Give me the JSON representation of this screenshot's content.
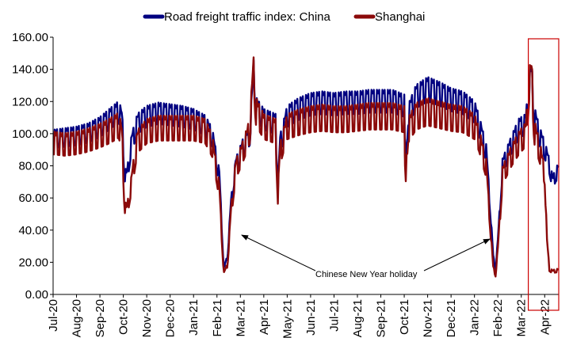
{
  "chart_data": {
    "type": "line",
    "title": "",
    "xlabel": "",
    "ylabel": "",
    "ylim": [
      0,
      160
    ],
    "yticks": [
      "0.00",
      "20.00",
      "40.00",
      "60.00",
      "80.00",
      "100.00",
      "120.00",
      "140.00",
      "160.00"
    ],
    "xticks": [
      "Jul-20",
      "Aug-20",
      "Sep-20",
      "Oct-20",
      "Nov-20",
      "Dec-20",
      "Jan-21",
      "Feb-21",
      "Mar-21",
      "Apr-21",
      "May-21",
      "Jun-21",
      "Jul-21",
      "Aug-21",
      "Sep-21",
      "Oct-21",
      "Nov-21",
      "Dec-21",
      "Jan-22",
      "Feb-22",
      "Mar-22",
      "Apr-22"
    ],
    "x_range_months": [
      0,
      21.6
    ],
    "legend_position": "top",
    "annotation": "Chinese New Year holiday",
    "highlight_box": {
      "x_from_months": 20.3,
      "x_to_months": 21.6,
      "color": "#cc0000"
    },
    "series": [
      {
        "name": "Road freight traffic index: China",
        "color": "#000080",
        "weekly_swing": 8,
        "points": [
          [
            0,
            103
          ],
          [
            0.5,
            104
          ],
          [
            1,
            105
          ],
          [
            1.5,
            107
          ],
          [
            2,
            111
          ],
          [
            2.4,
            116
          ],
          [
            2.8,
            121
          ],
          [
            2.95,
            115
          ],
          [
            3.05,
            80
          ],
          [
            3.15,
            77
          ],
          [
            3.35,
            100
          ],
          [
            3.6,
            113
          ],
          [
            4,
            118
          ],
          [
            4.5,
            120
          ],
          [
            5,
            119
          ],
          [
            5.5,
            118
          ],
          [
            6,
            116
          ],
          [
            6.5,
            112
          ],
          [
            6.8,
            104
          ],
          [
            7.1,
            78
          ],
          [
            7.25,
            30
          ],
          [
            7.3,
            17
          ],
          [
            7.45,
            25
          ],
          [
            7.6,
            60
          ],
          [
            7.8,
            85
          ],
          [
            8.1,
            97
          ],
          [
            8.4,
            105
          ],
          [
            8.52,
            135
          ],
          [
            8.58,
            150
          ],
          [
            8.65,
            124
          ],
          [
            9,
            116
          ],
          [
            9.5,
            113
          ],
          [
            9.6,
            70
          ],
          [
            9.7,
            100
          ],
          [
            10,
            118
          ],
          [
            10.5,
            123
          ],
          [
            11,
            126
          ],
          [
            11.5,
            127
          ],
          [
            12,
            126
          ],
          [
            12.5,
            127
          ],
          [
            13,
            127
          ],
          [
            13.5,
            128
          ],
          [
            14,
            128
          ],
          [
            14.5,
            128
          ],
          [
            15,
            125
          ],
          [
            15.05,
            70
          ],
          [
            15.15,
            118
          ],
          [
            15.5,
            131
          ],
          [
            16,
            136
          ],
          [
            16.5,
            133
          ],
          [
            17,
            129
          ],
          [
            17.5,
            127
          ],
          [
            18,
            121
          ],
          [
            18.2,
            112
          ],
          [
            18.5,
            94
          ],
          [
            18.7,
            50
          ],
          [
            18.8,
            25
          ],
          [
            18.9,
            16
          ],
          [
            19.0,
            35
          ],
          [
            19.2,
            85
          ],
          [
            19.6,
            100
          ],
          [
            19.9,
            110
          ],
          [
            20.2,
            113
          ],
          [
            20.35,
            140
          ],
          [
            20.45,
            144
          ],
          [
            20.55,
            118
          ],
          [
            20.8,
            104
          ],
          [
            21.0,
            96
          ],
          [
            21.2,
            85
          ],
          [
            21.35,
            73
          ],
          [
            21.45,
            79
          ],
          [
            21.6,
            82
          ]
        ]
      },
      {
        "name": "Shanghai",
        "color": "#8b0a0a",
        "weekly_swing": 10,
        "points": [
          [
            0,
            102
          ],
          [
            0.5,
            101
          ],
          [
            1,
            102
          ],
          [
            1.5,
            104
          ],
          [
            2,
            107
          ],
          [
            2.4,
            110
          ],
          [
            2.8,
            114
          ],
          [
            2.95,
            105
          ],
          [
            3.05,
            60
          ],
          [
            3.15,
            55
          ],
          [
            3.35,
            75
          ],
          [
            3.6,
            103
          ],
          [
            4,
            110
          ],
          [
            4.5,
            112
          ],
          [
            5,
            112
          ],
          [
            5.5,
            112
          ],
          [
            6,
            112
          ],
          [
            6.5,
            110
          ],
          [
            6.8,
            100
          ],
          [
            7.1,
            70
          ],
          [
            7.25,
            25
          ],
          [
            7.3,
            14
          ],
          [
            7.45,
            20
          ],
          [
            7.6,
            55
          ],
          [
            7.8,
            84
          ],
          [
            8.1,
            96
          ],
          [
            8.4,
            110
          ],
          [
            8.52,
            140
          ],
          [
            8.58,
            151
          ],
          [
            8.65,
            124
          ],
          [
            9,
            113
          ],
          [
            9.5,
            110
          ],
          [
            9.6,
            66
          ],
          [
            9.7,
            95
          ],
          [
            10,
            113
          ],
          [
            10.5,
            116
          ],
          [
            11,
            118
          ],
          [
            11.5,
            119
          ],
          [
            12,
            118
          ],
          [
            12.5,
            118
          ],
          [
            13,
            119
          ],
          [
            13.5,
            120
          ],
          [
            14,
            120
          ],
          [
            14.5,
            120
          ],
          [
            15,
            118
          ],
          [
            15.05,
            65
          ],
          [
            15.15,
            110
          ],
          [
            15.5,
            120
          ],
          [
            16,
            123
          ],
          [
            16.5,
            121
          ],
          [
            17,
            119
          ],
          [
            17.5,
            118
          ],
          [
            18,
            113
          ],
          [
            18.2,
            104
          ],
          [
            18.5,
            85
          ],
          [
            18.7,
            40
          ],
          [
            18.8,
            18
          ],
          [
            18.9,
            13
          ],
          [
            19.0,
            30
          ],
          [
            19.2,
            80
          ],
          [
            19.6,
            94
          ],
          [
            19.9,
            102
          ],
          [
            20.2,
            108
          ],
          [
            20.35,
            143
          ],
          [
            20.45,
            147
          ],
          [
            20.55,
            110
          ],
          [
            20.8,
            95
          ],
          [
            21.0,
            80
          ],
          [
            21.1,
            35
          ],
          [
            21.2,
            17
          ],
          [
            21.35,
            15
          ],
          [
            21.45,
            16
          ],
          [
            21.6,
            16
          ]
        ]
      }
    ]
  }
}
